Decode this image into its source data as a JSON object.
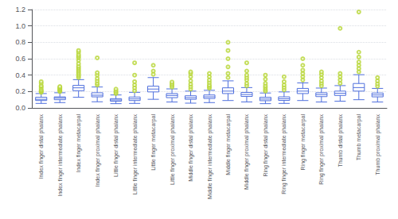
{
  "chart_data": {
    "type": "box",
    "categories": [
      "Index finger distal phalanx",
      "Index finger intermediate phalanx",
      "Index finger metacarpal",
      "Index finger proximal phalanx",
      "Little finger distal phalanx",
      "Little finger intermediate phalanx",
      "Little finger metacarpal",
      "Little finger proximal phalanx",
      "Middle finger distal phalanx",
      "Middle finger intermediate phalanx",
      "Middle finger metacarpal",
      "Middle finger proximal phalanx",
      "Ring finger distal phalanx",
      "Ring finger intermediate phalanx",
      "Ring finger metacarpal",
      "Ring finger proximal phalanx",
      "Thumb distal phalanx",
      "Thumb metacarpal",
      "Thumb proximal phalanx"
    ],
    "values": [
      [
        0.055,
        0.09,
        0.105,
        0.13,
        0.175
      ],
      [
        0.065,
        0.1,
        0.12,
        0.135,
        0.185
      ],
      [
        0.13,
        0.21,
        0.245,
        0.275,
        0.345
      ],
      [
        0.075,
        0.135,
        0.155,
        0.185,
        0.255
      ],
      [
        0.052,
        0.082,
        0.097,
        0.113,
        0.158
      ],
      [
        0.055,
        0.09,
        0.11,
        0.133,
        0.19
      ],
      [
        0.105,
        0.195,
        0.23,
        0.265,
        0.37
      ],
      [
        0.072,
        0.125,
        0.152,
        0.175,
        0.232
      ],
      [
        0.058,
        0.105,
        0.125,
        0.148,
        0.205
      ],
      [
        0.065,
        0.115,
        0.135,
        0.158,
        0.215
      ],
      [
        0.09,
        0.175,
        0.205,
        0.245,
        0.33
      ],
      [
        0.073,
        0.14,
        0.163,
        0.188,
        0.248
      ],
      [
        0.052,
        0.088,
        0.108,
        0.13,
        0.182
      ],
      [
        0.055,
        0.092,
        0.112,
        0.135,
        0.195
      ],
      [
        0.09,
        0.175,
        0.205,
        0.238,
        0.305
      ],
      [
        0.072,
        0.138,
        0.162,
        0.185,
        0.242
      ],
      [
        0.082,
        0.152,
        0.178,
        0.205,
        0.272
      ],
      [
        0.1,
        0.205,
        0.248,
        0.298,
        0.405
      ],
      [
        0.072,
        0.135,
        0.158,
        0.182,
        0.238
      ]
    ],
    "fliers": [
      [
        0.19,
        0.2,
        0.21,
        0.22,
        0.24,
        0.26,
        0.27,
        0.3,
        0.32
      ],
      [
        0.2,
        0.21,
        0.22,
        0.23,
        0.24,
        0.25,
        0.26
      ],
      [
        0.37,
        0.39,
        0.41,
        0.43,
        0.45,
        0.47,
        0.49,
        0.51,
        0.54,
        0.58,
        0.61,
        0.63,
        0.65,
        0.68,
        0.7
      ],
      [
        0.28,
        0.3,
        0.33,
        0.36,
        0.4,
        0.43,
        0.61
      ],
      [
        0.175,
        0.19,
        0.21,
        0.23
      ],
      [
        0.21,
        0.245,
        0.28,
        0.32,
        0.4,
        0.55
      ],
      [
        0.41,
        0.45,
        0.52
      ],
      [
        0.255,
        0.275,
        0.295,
        0.315
      ],
      [
        0.23,
        0.26,
        0.29,
        0.33,
        0.38,
        0.42,
        0.44
      ],
      [
        0.24,
        0.26,
        0.28,
        0.31,
        0.34,
        0.38,
        0.42
      ],
      [
        0.37,
        0.42,
        0.5,
        0.6,
        0.7,
        0.8
      ],
      [
        0.27,
        0.3,
        0.34,
        0.37,
        0.4,
        0.45,
        0.55
      ],
      [
        0.205,
        0.225,
        0.248,
        0.27,
        0.3,
        0.35,
        0.4
      ],
      [
        0.22,
        0.25,
        0.28,
        0.32,
        0.38
      ],
      [
        0.34,
        0.38,
        0.42,
        0.46,
        0.52,
        0.6
      ],
      [
        0.27,
        0.3,
        0.33,
        0.37,
        0.41,
        0.44
      ],
      [
        0.3,
        0.34,
        0.38,
        0.42,
        0.97
      ],
      [
        0.44,
        0.48,
        0.52,
        0.56,
        0.62,
        0.68,
        1.17
      ],
      [
        0.265,
        0.295,
        0.33,
        0.37
      ]
    ],
    "ylim": [
      0.0,
      1.2
    ],
    "yticks": [
      {
        "value": 0,
        "label": "0.0"
      },
      0.2,
      0.4,
      0.6,
      0.8,
      {
        "value": 1,
        "label": "1.0"
      },
      1.2
    ],
    "grid": true
  }
}
